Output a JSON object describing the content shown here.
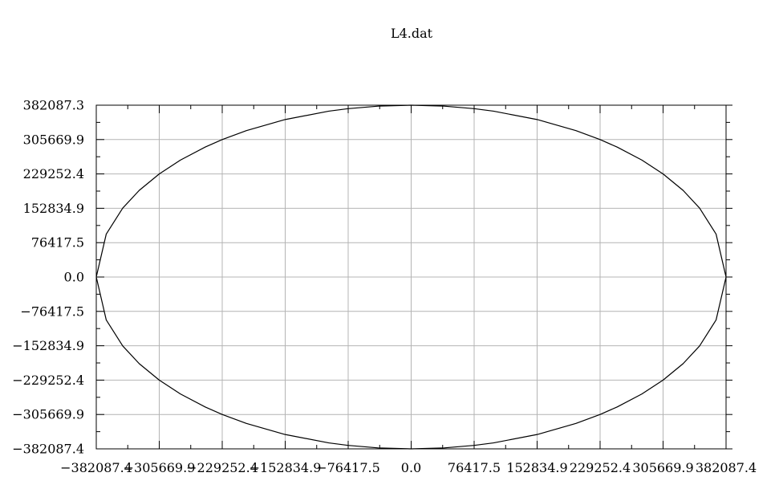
{
  "chart_data": {
    "type": "line",
    "title": "L4.dat",
    "xlabel": "",
    "ylabel": "",
    "xlim": [
      -382087.4,
      382087.4
    ],
    "ylim": [
      -382087.4,
      382087.3
    ],
    "grid": true,
    "x_ticks": [
      {
        "value": -382087.4,
        "label": "−382087.4"
      },
      {
        "value": -305669.9,
        "label": "−305669.9"
      },
      {
        "value": -229252.4,
        "label": "−229252.4"
      },
      {
        "value": -152834.9,
        "label": "−152834.9"
      },
      {
        "value": -76417.5,
        "label": "−76417.5"
      },
      {
        "value": 0.0,
        "label": "0.0"
      },
      {
        "value": 76417.5,
        "label": "76417.5"
      },
      {
        "value": 152834.9,
        "label": "152834.9"
      },
      {
        "value": 229252.4,
        "label": "229252.4"
      },
      {
        "value": 305669.9,
        "label": "305669.9"
      },
      {
        "value": 382087.4,
        "label": "382087.4"
      }
    ],
    "y_ticks": [
      {
        "value": 382087.3,
        "label": "382087.3"
      },
      {
        "value": 305669.9,
        "label": "305669.9"
      },
      {
        "value": 229252.4,
        "label": "229252.4"
      },
      {
        "value": 152834.9,
        "label": "152834.9"
      },
      {
        "value": 76417.5,
        "label": "76417.5"
      },
      {
        "value": 0.0,
        "label": "0.0"
      },
      {
        "value": -76417.5,
        "label": "−76417.5"
      },
      {
        "value": -152834.9,
        "label": "−152834.9"
      },
      {
        "value": -229252.4,
        "label": "−229252.4"
      },
      {
        "value": -305669.9,
        "label": "−305669.9"
      },
      {
        "value": -382087.4,
        "label": "−382087.4"
      }
    ],
    "series": [
      {
        "color": "#000000",
        "x": [
          382087.4,
          370000,
          350000,
          330000,
          305669.9,
          280000,
          250000,
          229252.4,
          200000,
          152834.9,
          100000,
          76417.5,
          40000,
          0,
          -40000,
          -76417.5,
          -100000,
          -152834.9,
          -200000,
          -229252.4,
          -250000,
          -280000,
          -305669.9,
          -330000,
          -350000,
          -370000,
          -382087.4,
          -370000,
          -350000,
          -330000,
          -305669.9,
          -280000,
          -250000,
          -229252.4,
          -200000,
          -152834.9,
          -100000,
          -76417.5,
          -40000,
          0,
          40000,
          76417.5,
          100000,
          152834.9,
          200000,
          229252.4,
          250000,
          280000,
          305669.9,
          330000,
          350000,
          370000,
          382087.4
        ],
        "y": [
          0,
          95400,
          153200,
          192600,
          229252.4,
          260000,
          288900,
          305669.9,
          325600,
          350200,
          368800,
          374400,
          380000,
          382087.3,
          380000,
          374400,
          368800,
          350200,
          325600,
          305669.9,
          288900,
          260000,
          229252.4,
          192600,
          153200,
          95400,
          0,
          -95400,
          -153200,
          -192600,
          -229252.4,
          -260000,
          -288900,
          -305669.9,
          -325600,
          -350200,
          -368800,
          -374400,
          -380000,
          -382087.4,
          -380000,
          -374400,
          -368800,
          -350200,
          -325600,
          -305669.9,
          -288900,
          -260000,
          -229252.4,
          -192600,
          -153200,
          -95400,
          0
        ]
      }
    ]
  }
}
